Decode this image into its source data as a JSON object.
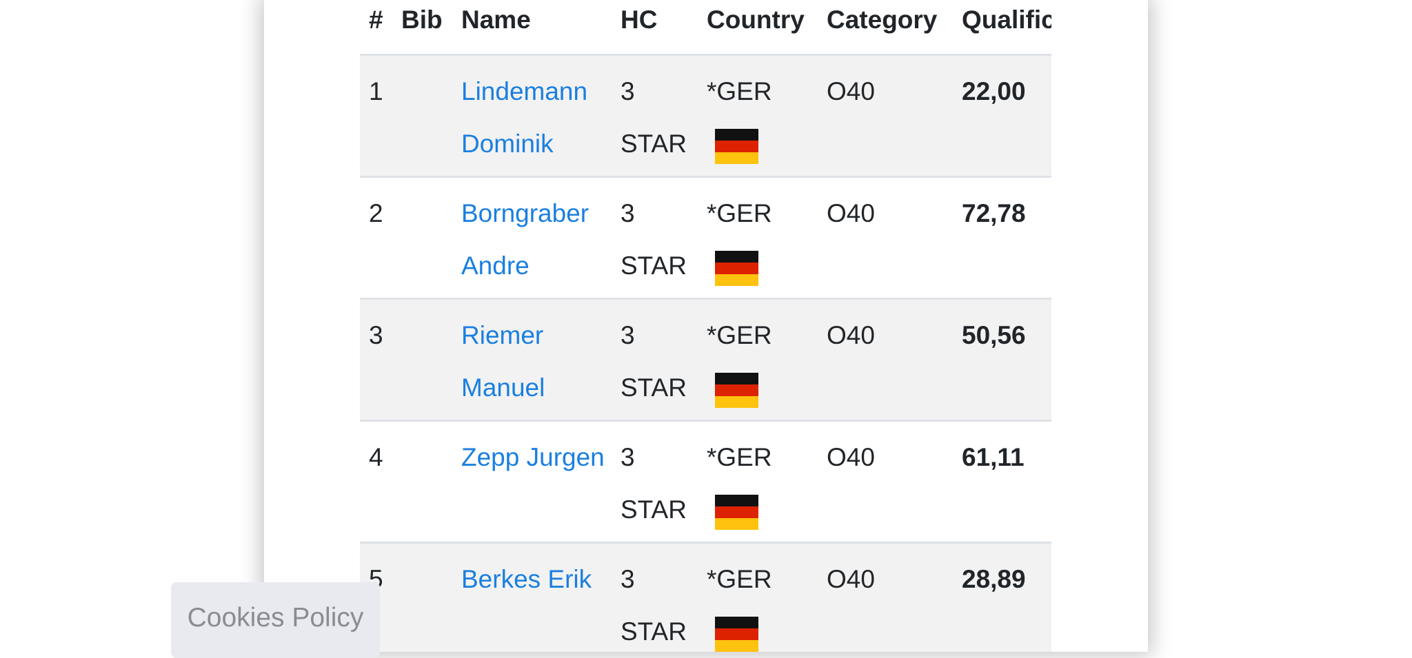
{
  "table": {
    "headers": [
      "#",
      "Bib",
      "Name",
      "HC",
      "Country",
      "Category",
      "Qualification"
    ],
    "rows": [
      {
        "rank": "1",
        "name": "Lindemann Dominik",
        "hc": "3 STAR",
        "country": "*GER",
        "category": "O40",
        "score": "22,00"
      },
      {
        "rank": "2",
        "name": "Borngraber Andre",
        "hc": "3 STAR",
        "country": "*GER",
        "category": "O40",
        "score": "72,78"
      },
      {
        "rank": "3",
        "name": "Riemer Manuel",
        "hc": "3 STAR",
        "country": "*GER",
        "category": "O40",
        "score": "50,56"
      },
      {
        "rank": "4",
        "name": "Zepp Jurgen",
        "hc": "3 STAR",
        "country": "*GER",
        "category": "O40",
        "score": "61,11"
      },
      {
        "rank": "5",
        "name": "Berkes Erik",
        "hc": "3 STAR",
        "country": "*GER",
        "category": "O40",
        "score": "28,89"
      }
    ]
  },
  "cookies_button": "Cookies Policy"
}
